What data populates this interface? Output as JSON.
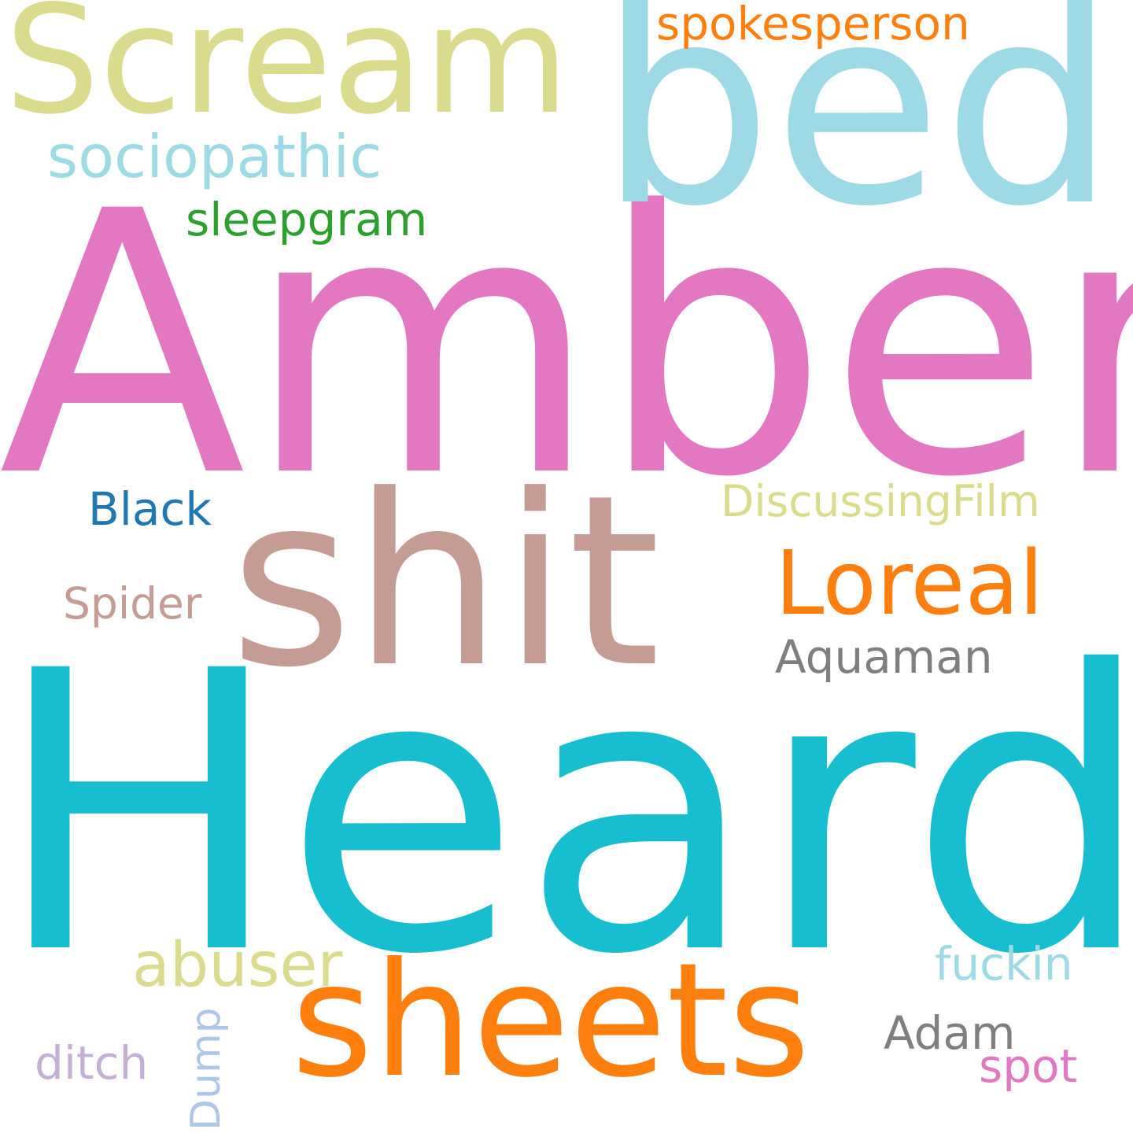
{
  "words": [
    {
      "text": "Heard",
      "color": "#17becf"
    },
    {
      "text": "Amber",
      "color": "#e377c2"
    },
    {
      "text": "bed",
      "color": "#9edae5"
    },
    {
      "text": "Scream",
      "color": "#dbdb8d"
    },
    {
      "text": "shit",
      "color": "#c49c94"
    },
    {
      "text": "sheets",
      "color": "#ff7f0e"
    },
    {
      "text": "Loreal",
      "color": "#ff7f0e"
    },
    {
      "text": "sociopathic",
      "color": "#9edae5"
    },
    {
      "text": "sleepgram",
      "color": "#2ca02c"
    },
    {
      "text": "spokesperson",
      "color": "#ff7f0e"
    },
    {
      "text": "DiscussingFilm",
      "color": "#dbdb8d"
    },
    {
      "text": "Black",
      "color": "#1f77b4"
    },
    {
      "text": "Spider",
      "color": "#c49c94"
    },
    {
      "text": "Aquaman",
      "color": "#7f7f7f"
    },
    {
      "text": "abuser",
      "color": "#dbdb8d"
    },
    {
      "text": "fuckin",
      "color": "#9edae5"
    },
    {
      "text": "Adam",
      "color": "#7f7f7f"
    },
    {
      "text": "ditch",
      "color": "#c5b0d5"
    },
    {
      "text": "spot",
      "color": "#e377c2"
    },
    {
      "text": "Dump",
      "color": "#aec7e8"
    }
  ]
}
